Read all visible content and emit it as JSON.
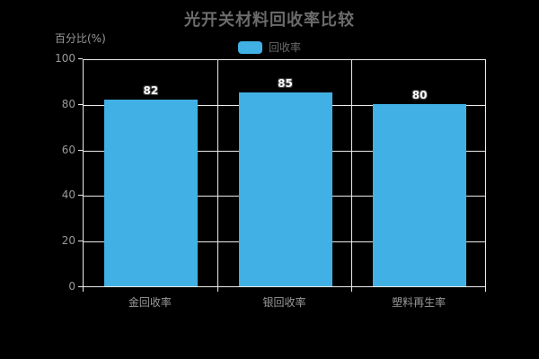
{
  "chart_data": {
    "type": "bar",
    "title": "光开关材料回收率比较",
    "categories": [
      "金回收率",
      "银回收率",
      "塑料再生率"
    ],
    "series": [
      {
        "name": "回收率",
        "values": [
          82,
          85,
          80
        ]
      }
    ],
    "value_labels": [
      "82",
      "85",
      "80"
    ],
    "legend": {
      "entries": [
        "回收率"
      ],
      "position": "top-center"
    },
    "xlabel": "",
    "ylabel": "百分比(%)",
    "ylim": [
      0,
      100
    ],
    "yticks": [
      0,
      20,
      40,
      60,
      80,
      100
    ],
    "grid": "on",
    "legend_position": "top-center"
  },
  "colors": {
    "background": "#000000",
    "bar": "#41b0e4",
    "grid_line": "#ececec",
    "axis_line": "#ececec",
    "title_text": "#6b6b6b",
    "legend_text": "#6b6b6b",
    "axis_label_text": "#999999",
    "value_label_text": "#ffffff",
    "value_label_outline": "#3a3a3a"
  }
}
